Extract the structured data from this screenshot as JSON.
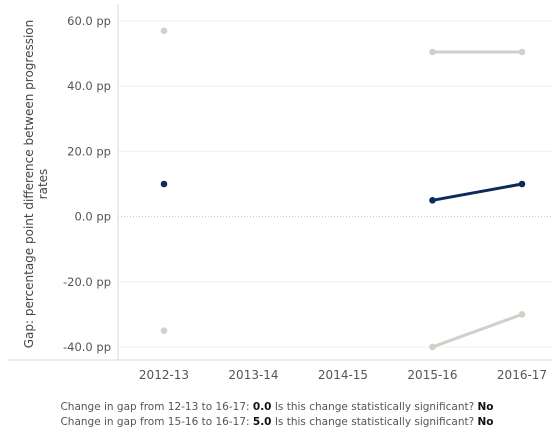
{
  "chart_data": {
    "type": "line",
    "title": "",
    "xlabel": "",
    "ylabel": "Gap: percentage point difference between progression rates",
    "categories": [
      "2012-13",
      "2013-14",
      "2014-15",
      "2015-16",
      "2016-17"
    ],
    "y_tick_labels": [
      "60.0 pp",
      "40.0 pp",
      "20.0 pp",
      "0.0 pp",
      "-20.0 pp",
      "-40.0 pp"
    ],
    "y_tick_values": [
      60,
      40,
      20,
      0,
      -20,
      -40
    ],
    "ylim": [
      -44,
      64
    ],
    "grid": true,
    "legend": "none",
    "series": [
      {
        "key": "upper",
        "color": "#d3cfc9",
        "values": [
          57,
          null,
          null,
          50.5,
          50.5
        ]
      },
      {
        "key": "gap",
        "color": "#0b2b59",
        "values": [
          10,
          null,
          null,
          5,
          10
        ]
      },
      {
        "key": "lower",
        "color": "#d3cfc9",
        "values": [
          -35,
          null,
          null,
          -40,
          -30
        ]
      }
    ]
  },
  "footnotes": [
    {
      "text": "Change in gap from 12-13 to 16-17: ",
      "value": "0.0",
      "question": " Is this change statistically significant? ",
      "answer": "No"
    },
    {
      "text": "Change in gap from 15-16 to 16-17: ",
      "value": "5.0",
      "question": " Is this change statistically significant? ",
      "answer": "No"
    }
  ]
}
